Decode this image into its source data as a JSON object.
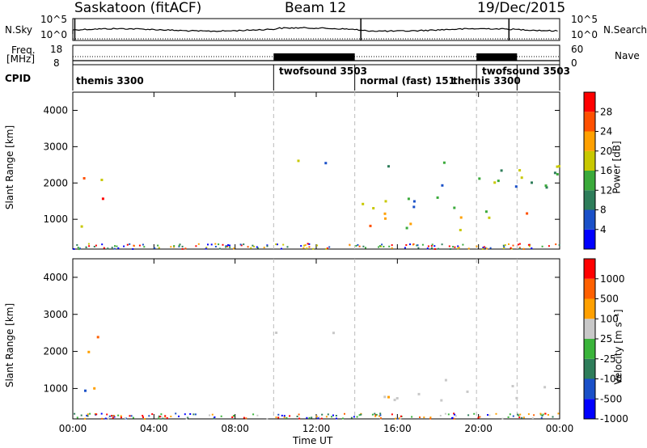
{
  "header": {
    "station": "Saskatoon (fitACF)",
    "beam": "Beam 12",
    "date": "19/Dec/2015"
  },
  "top_strips": {
    "nsky": {
      "label": "N.Sky",
      "ticks": [
        "10^5",
        "10^0"
      ],
      "right_ticks": [
        "10^5",
        "10^0"
      ],
      "right_label": "N.Search"
    },
    "freq": {
      "label_line1": "Freq.",
      "label_line2": "[MHz]",
      "ticks": [
        "18",
        "8"
      ],
      "right_ticks": [
        "60",
        "0"
      ],
      "right_label": "Nave"
    },
    "cpid": {
      "label": "CPID",
      "modes": [
        "themis 3300",
        "twofsound 3503",
        "normal (fast) 151",
        "themis 3300",
        "twofsound 3503"
      ]
    }
  },
  "chart_data": [
    {
      "type": "heatmap",
      "name": "power",
      "xlabel": "",
      "ylabel": "Slant Range [km]",
      "yticks": [
        "4000",
        "3000",
        "2000",
        "1000"
      ],
      "ylim": [
        180,
        4500
      ],
      "colorbar": {
        "label": "Power [dB]",
        "ticks": [
          "28",
          "24",
          "20",
          "16",
          "12",
          "8",
          "4"
        ],
        "colors": [
          "#0000ff",
          "#1a50c8",
          "#2e7d5a",
          "#3aaa3a",
          "#c8c800",
          "#ffa000",
          "#ff5000",
          "#ff0000"
        ]
      },
      "scatter_regions": [
        {
          "t": [
            0.1,
            1.5
          ],
          "r": [
            600,
            2500
          ],
          "level": "high"
        },
        {
          "t": [
            9.9,
            13.5
          ],
          "r": [
            2300,
            2700
          ],
          "level": "mid"
        },
        {
          "t": [
            14.2,
            24
          ],
          "r": [
            700,
            1300
          ],
          "level": "high"
        },
        {
          "t": [
            14.2,
            24
          ],
          "r": [
            1300,
            2800
          ],
          "level": "mid"
        }
      ]
    },
    {
      "type": "heatmap",
      "name": "velocity",
      "xlabel": "Time UT",
      "ylabel": "Slant Range [km]",
      "yticks": [
        "4000",
        "3000",
        "2000",
        "1000"
      ],
      "ylim": [
        180,
        4500
      ],
      "xticks": [
        "00:00",
        "04:00",
        "08:00",
        "12:00",
        "16:00",
        "20:00",
        "00:00"
      ],
      "xlim": [
        0,
        24
      ],
      "colorbar": {
        "label": "Velocity [m s⁻¹]",
        "ticks": [
          "1000",
          "500",
          "100",
          "25",
          "-25",
          "-100",
          "-500",
          "-1000"
        ],
        "colors": [
          "#0000ff",
          "#1a50c8",
          "#2e7d5a",
          "#3ab43a",
          "#c8c8c8",
          "#ffa000",
          "#ff6000",
          "#ff0000"
        ]
      },
      "scatter_regions": [
        {
          "t": [
            0.1,
            1.5
          ],
          "r": [
            600,
            2500
          ],
          "level": "mixed"
        },
        {
          "t": [
            9.9,
            13.5
          ],
          "r": [
            2300,
            2700
          ],
          "level": "grey"
        },
        {
          "t": [
            14.2,
            24
          ],
          "r": [
            700,
            1300
          ],
          "level": "grey"
        },
        {
          "t": [
            15,
            16.5
          ],
          "r": [
            500,
            900
          ],
          "level": "orange"
        }
      ]
    }
  ]
}
